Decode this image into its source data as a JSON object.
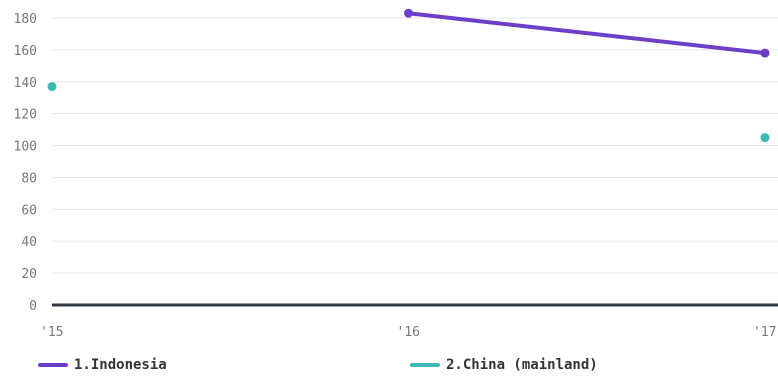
{
  "chart_data": {
    "type": "line",
    "x": [
      "'15",
      "'16",
      "'17"
    ],
    "yticks": [
      0,
      20,
      40,
      60,
      80,
      100,
      120,
      140,
      160,
      180
    ],
    "ylim": [
      0,
      190
    ],
    "grid": true,
    "legend_position": "bottom",
    "series": [
      {
        "name": "1.Indonesia",
        "color": "#6f3ec8",
        "values": [
          null,
          183,
          158
        ]
      },
      {
        "name": "2.China (mainland)",
        "color": "#3fb8b3",
        "values": [
          137,
          null,
          105
        ]
      }
    ]
  }
}
